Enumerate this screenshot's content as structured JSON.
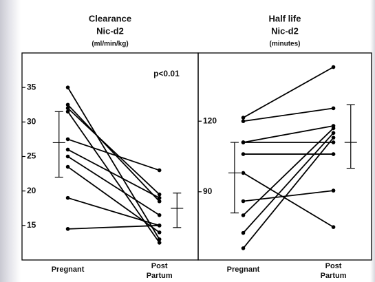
{
  "chart_data": [
    {
      "type": "slope",
      "title": [
        "Clearance",
        "Nic-d2"
      ],
      "subtitle": "(ml/min/kg)",
      "annotation": "p<0.01",
      "categories": [
        "Pregnant",
        "Post Partum"
      ],
      "ylim": [
        10,
        40
      ],
      "yticks": [
        15,
        20,
        25,
        30,
        35
      ],
      "color": "#000000",
      "series": [
        {
          "values": [
            35,
            13
          ]
        },
        {
          "values": [
            32.5,
            18.5
          ]
        },
        {
          "values": [
            32,
            19.5
          ]
        },
        {
          "values": [
            31.5,
            12.5
          ]
        },
        {
          "values": [
            27.5,
            23
          ]
        },
        {
          "values": [
            26,
            19
          ]
        },
        {
          "values": [
            25,
            16.5
          ]
        },
        {
          "values": [
            23.5,
            14
          ]
        },
        {
          "values": [
            19,
            15
          ]
        },
        {
          "values": [
            14.5,
            15
          ]
        }
      ],
      "summary": [
        {
          "mean": 27,
          "low": 22,
          "high": 31.5
        },
        {
          "mean": 17.5,
          "low": 14.7,
          "high": 19.7
        }
      ]
    },
    {
      "type": "slope",
      "title": [
        "Half life",
        "Nic-d2"
      ],
      "subtitle": "(minutes)",
      "categories": [
        "Pregnant",
        "Post Partum"
      ],
      "ylim": [
        61,
        149
      ],
      "yticks": [
        90,
        120
      ],
      "color": "#000000",
      "series": [
        {
          "values": [
            121.5,
            143
          ]
        },
        {
          "values": [
            120,
            125.5
          ]
        },
        {
          "values": [
            111,
            118
          ]
        },
        {
          "values": [
            111,
            111
          ]
        },
        {
          "values": [
            106,
            106
          ]
        },
        {
          "values": [
            98,
            75
          ]
        },
        {
          "values": [
            86,
            90.5
          ]
        },
        {
          "values": [
            80,
            117
          ]
        },
        {
          "values": [
            72.5,
            115
          ]
        },
        {
          "values": [
            66,
            113
          ]
        }
      ],
      "summary": [
        {
          "mean": 98,
          "low": 81,
          "high": 111
        },
        {
          "mean": 111,
          "low": 100,
          "high": 127
        }
      ]
    }
  ]
}
